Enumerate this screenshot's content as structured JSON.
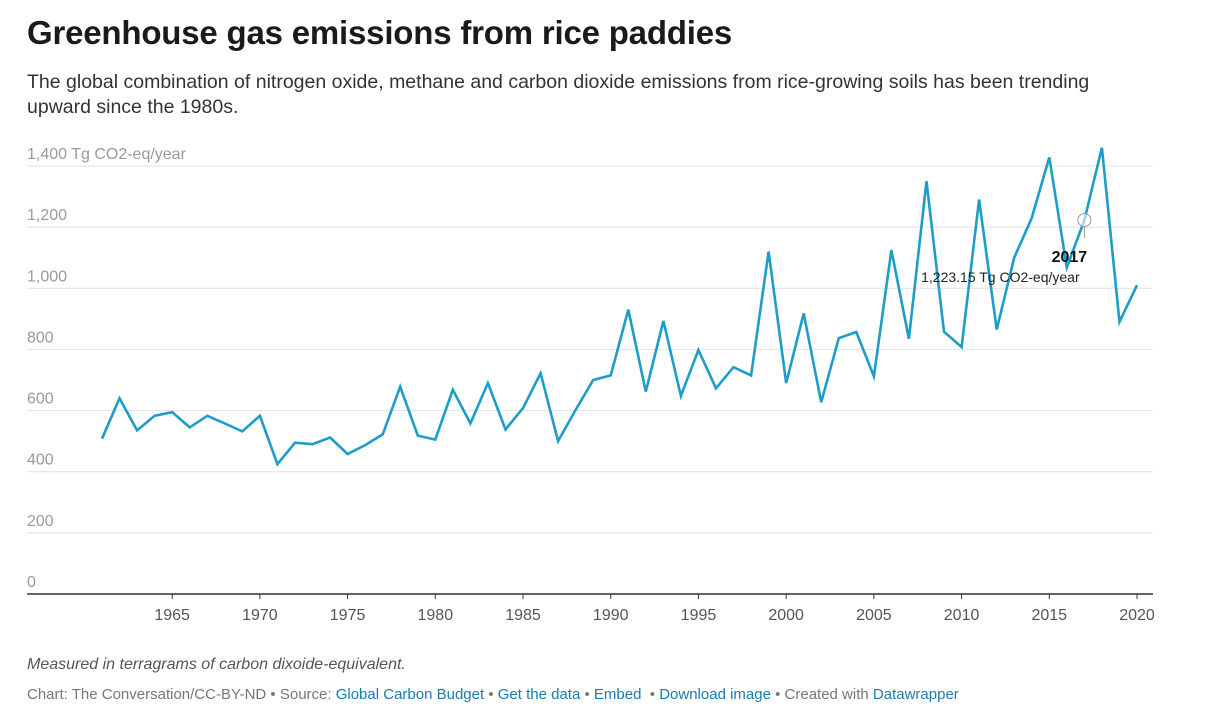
{
  "header": {
    "title": "Greenhouse gas emissions from rice paddies",
    "subtitle": "The global combination of nitrogen oxide, methane and carbon dioxide emissions from rice-growing soils has been trending upward since the 1980s."
  },
  "chart_data": {
    "type": "line",
    "title": "Greenhouse gas emissions from rice paddies",
    "ylabel": "",
    "xlabel": "",
    "xlim": [
      1961,
      2020
    ],
    "ylim": [
      0,
      1400
    ],
    "x_ticks": [
      "1965",
      "1970",
      "1975",
      "1980",
      "1985",
      "1990",
      "1995",
      "2000",
      "2005",
      "2010",
      "2015",
      "2020"
    ],
    "y_ticks": [
      "0",
      "200",
      "400",
      "600",
      "800",
      "1,000",
      "1,200",
      "1,400 Tg CO2-eq/year"
    ],
    "grid": true,
    "color": "#1d9dc8",
    "series": [
      {
        "x": [
          1961,
          1962,
          1963,
          1964,
          1965,
          1966,
          1967,
          1968,
          1969,
          1970,
          1971,
          1972,
          1973,
          1974,
          1975,
          1976,
          1977,
          1978,
          1979,
          1980,
          1981,
          1982,
          1983,
          1984,
          1985,
          1986,
          1987,
          1988,
          1989,
          1990,
          1991,
          1992,
          1993,
          1994,
          1995,
          1996,
          1997,
          1998,
          1999,
          2000,
          2001,
          2002,
          2003,
          2004,
          2005,
          2006,
          2007,
          2008,
          2009,
          2010,
          2011,
          2012,
          2013,
          2014,
          2015,
          2016,
          2017,
          2018,
          2019,
          2020
        ],
        "values": [
          508,
          640,
          535,
          583,
          595,
          545,
          583,
          558,
          532,
          583,
          425,
          495,
          490,
          512,
          458,
          487,
          522,
          678,
          518,
          505,
          668,
          558,
          690,
          538,
          608,
          722,
          500,
          602,
          700,
          715,
          930,
          662,
          893,
          648,
          798,
          673,
          742,
          715,
          1120,
          690,
          918,
          627,
          837,
          857,
          712,
          1125,
          835,
          1350,
          858,
          808,
          1290,
          865,
          1100,
          1230,
          1428,
          1068,
          1223.15,
          1460,
          890,
          1010
        ]
      }
    ],
    "tooltip": {
      "year": "2017",
      "value": 1223.15,
      "label": "1,223.15 Tg CO2-eq/year"
    }
  },
  "footer": {
    "note": "Measured in terragrams of carbon dixoide-equivalent.",
    "credit_prefix": "Chart: The Conversation/CC-BY-ND • Source: ",
    "source_link": "Global Carbon Budget",
    "sep1": " • ",
    "get_data": "Get the data",
    "sep2": " • ",
    "embed": "Embed",
    "sep3": "  • ",
    "download": "Download image",
    "sep4": " • Created with ",
    "datawrapper": "Datawrapper"
  }
}
